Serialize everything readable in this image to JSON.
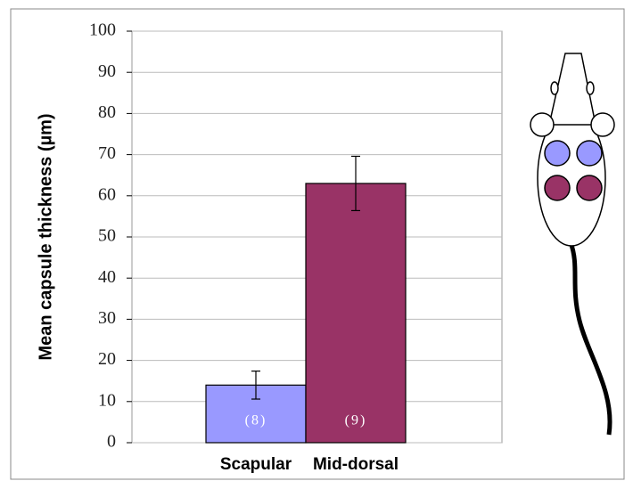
{
  "chart_data": {
    "type": "bar",
    "y_label": "Mean capsule thickness (µm)",
    "categories": [
      "Scapular",
      "Mid-dorsal"
    ],
    "values": [
      14,
      63
    ],
    "errors": [
      3.4,
      6.6
    ],
    "colors": [
      "#9999ff",
      "#993366"
    ],
    "n_labels": [
      "(8)",
      "(9)"
    ],
    "ylim": [
      0,
      100
    ],
    "yticks": [
      0,
      10,
      20,
      30,
      40,
      50,
      60,
      70,
      80,
      90,
      100
    ],
    "grid": true
  }
}
